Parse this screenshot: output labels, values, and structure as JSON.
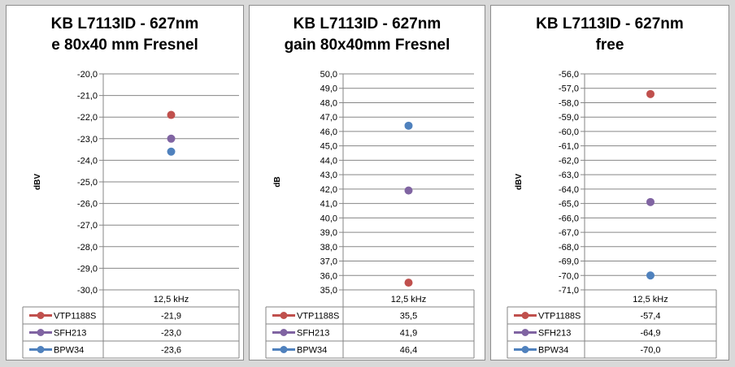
{
  "chart_data": [
    {
      "type": "scatter",
      "title_lines": [
        "KB L7113ID - 627nm",
        "e 80x40 mm Fresnel"
      ],
      "ylabel": "dBV",
      "ylim": [
        -30,
        -20
      ],
      "ytick_step": 1,
      "categories": [
        "12,5 kHz"
      ],
      "series": [
        {
          "name": "VTP1188S",
          "color": "#c0504d",
          "values": [
            -21.9
          ],
          "labels": [
            "-21,9"
          ]
        },
        {
          "name": "SFH213",
          "color": "#8064a2",
          "values": [
            -23.0
          ],
          "labels": [
            "-23,0"
          ]
        },
        {
          "name": "BPW34",
          "color": "#4f81bd",
          "values": [
            -23.6
          ],
          "labels": [
            "-23,6"
          ]
        }
      ]
    },
    {
      "type": "scatter",
      "title_lines": [
        "KB L7113ID - 627nm",
        "gain 80x40mm Fresnel"
      ],
      "ylabel": "dB",
      "ylim": [
        35,
        50
      ],
      "ytick_step": 1,
      "categories": [
        "12,5 kHz"
      ],
      "series": [
        {
          "name": "VTP1188S",
          "color": "#c0504d",
          "values": [
            35.5
          ],
          "labels": [
            "35,5"
          ]
        },
        {
          "name": "SFH213",
          "color": "#8064a2",
          "values": [
            41.9
          ],
          "labels": [
            "41,9"
          ]
        },
        {
          "name": "BPW34",
          "color": "#4f81bd",
          "values": [
            46.4
          ],
          "labels": [
            "46,4"
          ]
        }
      ]
    },
    {
      "type": "scatter",
      "title_lines": [
        "KB L7113ID - 627nm",
        "free"
      ],
      "ylabel": "dBV",
      "ylim": [
        -71,
        -56
      ],
      "ytick_step": 1,
      "categories": [
        "12,5 kHz"
      ],
      "series": [
        {
          "name": "VTP1188S",
          "color": "#c0504d",
          "values": [
            -57.4
          ],
          "labels": [
            "-57,4"
          ]
        },
        {
          "name": "SFH213",
          "color": "#8064a2",
          "values": [
            -64.9
          ],
          "labels": [
            "-64,9"
          ]
        },
        {
          "name": "BPW34",
          "color": "#4f81bd",
          "values": [
            -70.0
          ],
          "labels": [
            "-70,0"
          ]
        }
      ]
    }
  ],
  "style": {
    "grid_color": "#868686",
    "panel_background": "#ffffff",
    "page_background": "#d9d9d9"
  }
}
